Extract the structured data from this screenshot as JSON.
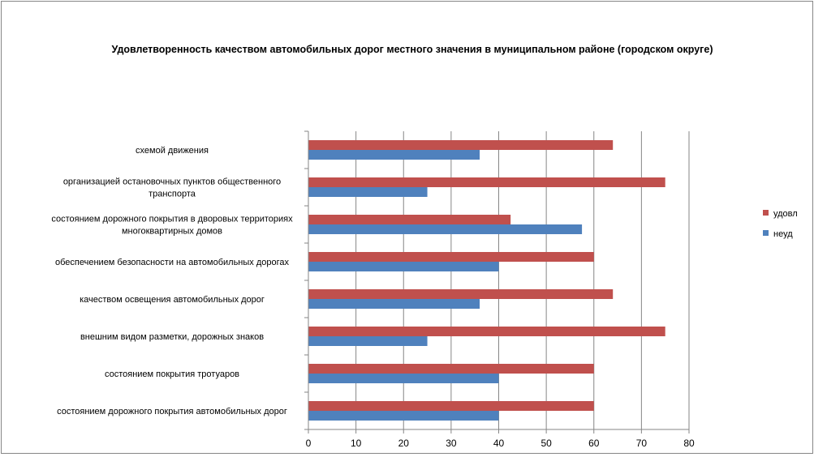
{
  "chart_data": {
    "type": "bar",
    "orientation": "horizontal",
    "title": "Удовлетворенность качеством автомобильных дорог местного значения в  муниципальном районе (городском округе)",
    "xlabel": "",
    "ylabel": "",
    "xlim": [
      0,
      80
    ],
    "x_ticks": [
      0,
      10,
      20,
      30,
      40,
      50,
      60,
      70,
      80
    ],
    "grid": "vertical major gridlines",
    "legend_position": "right",
    "categories": [
      [
        "схемой движения"
      ],
      [
        "организацией остановочных пунктов общественного",
        "транспорта"
      ],
      [
        "состоянием дорожного покрытия  в дворовых территориях",
        "многоквартирных домов"
      ],
      [
        "обеспечением  безопасности на автомобильных дорогах"
      ],
      [
        "качеством освещения  автомобильных дорог"
      ],
      [
        "внешним  видом разметки, дорожных знаков"
      ],
      [
        "состоянием покрытия тротуаров"
      ],
      [
        "состоянием дорожного покрытия автомобильных дорог"
      ]
    ],
    "series": [
      {
        "name": "удовл",
        "color": "#C0504D",
        "values": [
          64,
          75,
          42.5,
          60,
          64,
          75,
          60,
          60
        ]
      },
      {
        "name": "неуд",
        "color": "#4F81BD",
        "values": [
          36,
          25,
          57.5,
          40,
          36,
          25,
          40,
          40
        ]
      }
    ]
  }
}
